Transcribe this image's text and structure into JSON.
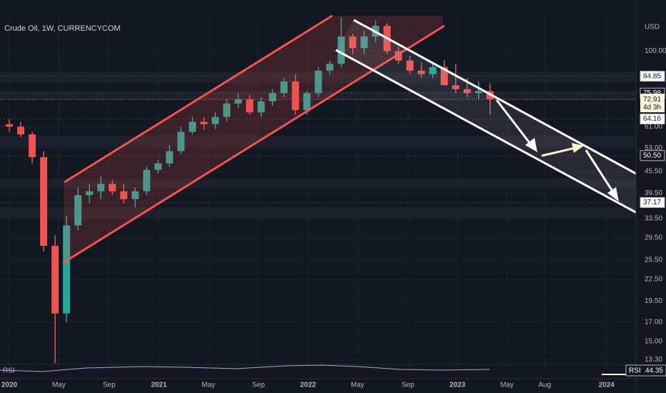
{
  "chart_data": {
    "type": "candlestick",
    "title": "Crude Oil, 1W, CURRENCYCOM",
    "currency": "USD",
    "log_scale": true,
    "ylim": [
      12.9,
      126
    ],
    "xlim": [
      -3.25,
      219
    ],
    "up_color": "#26a69a",
    "down_color": "#ef5350",
    "yticks": [
      {
        "value": 100,
        "label": "100.00"
      },
      {
        "value": 61,
        "label": "61.00"
      },
      {
        "value": 53,
        "label": "53.00"
      },
      {
        "value": 45.5,
        "label": "45.50"
      },
      {
        "value": 39.5,
        "label": "39.50"
      },
      {
        "value": 33.5,
        "label": "33.50"
      },
      {
        "value": 29.5,
        "label": "29.50"
      },
      {
        "value": 25.5,
        "label": "25.50"
      },
      {
        "value": 22.5,
        "label": "22.50"
      },
      {
        "value": 19.5,
        "label": "19.50"
      },
      {
        "value": 17,
        "label": "17.00"
      },
      {
        "value": 15,
        "label": "15.00"
      },
      {
        "value": 13.3,
        "label": "13.30"
      }
    ],
    "levels": [
      {
        "value": 84.85,
        "label": "84.85"
      },
      {
        "value": 75.98,
        "label": "75.98"
      },
      {
        "value": 64.16,
        "label": "64.16"
      },
      {
        "value": 50.5,
        "label": "50.50"
      },
      {
        "value": 37.17,
        "label": "37.17"
      }
    ],
    "last_price": {
      "value": 72.91,
      "label": "72.91",
      "countdown": "4d 3h"
    },
    "xticks": [
      {
        "value": 0,
        "label": "2020"
      },
      {
        "value": 17.3,
        "label": "May"
      },
      {
        "value": 34.9,
        "label": "Sep"
      },
      {
        "value": 52.3,
        "label": "2021"
      },
      {
        "value": 69.6,
        "label": "May"
      },
      {
        "value": 87.1,
        "label": "Sep"
      },
      {
        "value": 104.4,
        "label": "2022"
      },
      {
        "value": 121.7,
        "label": "May"
      },
      {
        "value": 139.3,
        "label": "Sep"
      },
      {
        "value": 156.6,
        "label": "2023"
      },
      {
        "value": 173.9,
        "label": "May"
      },
      {
        "value": 187.1,
        "label": "Aug"
      },
      {
        "value": 208.7,
        "label": "2024"
      }
    ],
    "x": [
      0,
      4,
      8,
      12,
      16,
      20,
      24,
      28,
      32,
      36,
      40,
      44,
      48,
      52,
      56,
      60,
      64,
      68,
      72,
      76,
      80,
      84,
      88,
      92,
      96,
      100,
      104,
      108,
      112,
      116,
      120,
      124,
      128,
      132,
      136,
      140,
      144,
      148,
      152,
      156,
      160,
      164,
      168
    ],
    "open": [
      62,
      61,
      58,
      50,
      28,
      18,
      32,
      39,
      40,
      42,
      40,
      38,
      40,
      46,
      48,
      52,
      59,
      63,
      62,
      65,
      71,
      73,
      67,
      72,
      76,
      82,
      68,
      76,
      88,
      92,
      110,
      102,
      110,
      118,
      100,
      94,
      88,
      86,
      90,
      80,
      78,
      76,
      77
    ],
    "high": [
      64,
      63,
      59,
      52,
      30,
      34,
      41,
      42,
      44,
      43,
      42,
      41,
      47,
      49,
      54,
      61,
      65,
      65,
      67,
      73,
      76,
      75,
      74,
      78,
      84,
      86,
      77,
      90,
      94,
      125,
      112,
      114,
      122,
      120,
      103,
      97,
      93,
      92,
      94,
      92,
      84,
      82,
      81
    ],
    "low": [
      59,
      57,
      48,
      27,
      13,
      17,
      31,
      37,
      38,
      39,
      37,
      36,
      39,
      45,
      47,
      51,
      58,
      60,
      60,
      63,
      69,
      66,
      65,
      70,
      74,
      66,
      66,
      74,
      86,
      90,
      98,
      98,
      106,
      98,
      92,
      86,
      84,
      84,
      80,
      76,
      74,
      73,
      66
    ],
    "close": [
      61,
      58,
      50,
      28,
      18,
      32,
      39,
      40,
      42,
      40,
      38,
      40,
      46,
      48,
      52,
      59,
      63,
      62,
      65,
      71,
      73,
      67,
      72,
      76,
      82,
      68,
      76,
      88,
      92,
      110,
      102,
      110,
      118,
      100,
      94,
      88,
      86,
      90,
      80,
      78,
      76,
      77,
      73
    ],
    "rsi": {
      "label": "RSI",
      "value_label": "44.35"
    }
  }
}
